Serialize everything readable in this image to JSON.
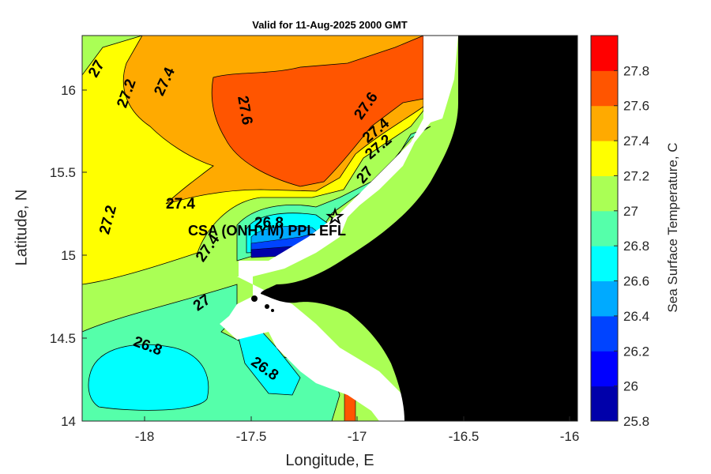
{
  "title": "Valid for 11-Aug-2025 2000 GMT",
  "x_axis": {
    "label": "Longitude, E",
    "ticks": [
      "-18",
      "-17.5",
      "-17",
      "-16.5",
      "-16"
    ]
  },
  "y_axis": {
    "label": "Latitude, N",
    "ticks": [
      "14",
      "14.5",
      "15",
      "15.5",
      "16"
    ]
  },
  "colorbar": {
    "label": "Sea Surface Temperature, C",
    "ticks": [
      "25.8",
      "26",
      "26.2",
      "26.4",
      "26.6",
      "26.8",
      "27",
      "27.2",
      "27.4",
      "27.6",
      "27.8"
    ],
    "colors": [
      "#0000aa",
      "#0000ff",
      "#0044ff",
      "#00aaff",
      "#00ffff",
      "#55ffaa",
      "#aaff55",
      "#ffff00",
      "#ffaa00",
      "#ff5500",
      "#ff0000"
    ]
  },
  "contour_labels": [
    "27",
    "27.2",
    "27.4",
    "27.6",
    "27.6",
    "27.4",
    "27.2",
    "27",
    "27.2",
    "27.4",
    "27.4",
    "26.8",
    "27",
    "26.8",
    "26.8"
  ],
  "station": {
    "label": "CSA (ONHYM) PPL EFL",
    "marker": "star-icon"
  },
  "land_color": "#000000",
  "mask_color": "#ffffff"
}
